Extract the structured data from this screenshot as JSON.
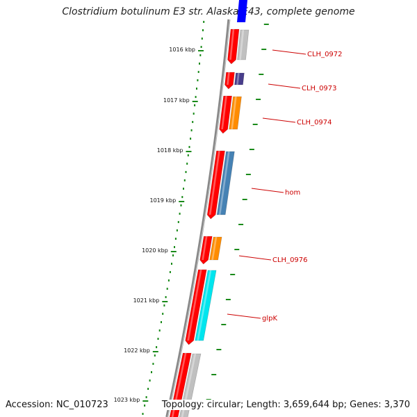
{
  "title": "Clostridium botulinum E3 str. Alaska E43, complete genome",
  "footer": {
    "accession": "Accession: NC_010723",
    "topology": "Topology: circular; Length: 3,659,644 bp; Genes: 3,370"
  },
  "ticks": [
    {
      "label": "1016 kbp"
    },
    {
      "label": "1017 kbp"
    },
    {
      "label": "1018 kbp"
    },
    {
      "label": "1019 kbp"
    },
    {
      "label": "1020 kbp"
    },
    {
      "label": "1021 kbp"
    },
    {
      "label": "1022 kbp"
    },
    {
      "label": "1023 kbp"
    }
  ],
  "genes": [
    {
      "label": "CLH_0972",
      "color": "#c0c0c0"
    },
    {
      "label": "CLH_0973",
      "color": "#483d8b"
    },
    {
      "label": "CLH_0974",
      "color": "#ff8c00"
    },
    {
      "label": "hom",
      "color": "#4682b4"
    },
    {
      "label": "CLH_0976",
      "color": "#ff8c00"
    },
    {
      "label": "glpK",
      "color": "#00e5ee"
    },
    {
      "label": "",
      "color": "#c0c0c0"
    }
  ],
  "colors": {
    "cds": "#ff0000",
    "gene_label": "#cc0000",
    "tick": "#1a8a1a",
    "backbone": "#888888",
    "top_feature": "#0000ff"
  }
}
